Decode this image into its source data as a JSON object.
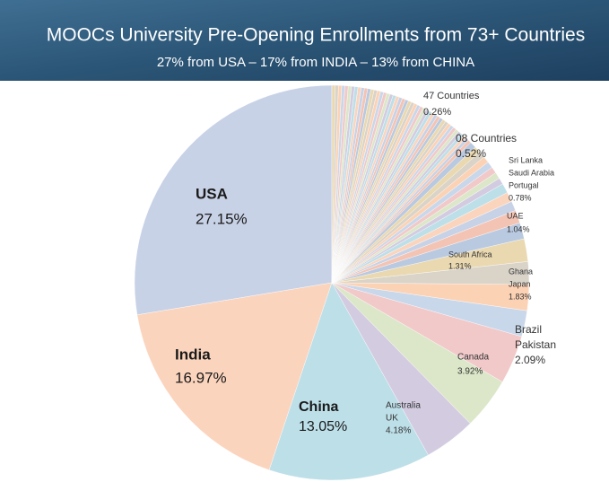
{
  "chart_data": {
    "type": "pie",
    "title": "MOOCs University Pre-Opening Enrollments from 73+ Countries",
    "subtitle": "27% from USA – 17% from INDIA – 13% from CHINA",
    "colors": [
      "#c8d2e6",
      "#fbd4bd",
      "#bddfe8",
      "#d3cce1",
      "#dbe7c8",
      "#f1c9c9",
      "#c9d7ea",
      "#fcd2b5",
      "#d9d3c8",
      "#e9d8b0",
      "#b9c9e0",
      "#f3c4b4"
    ],
    "slices": [
      {
        "names": [
          "USA"
        ],
        "value": 27.15,
        "value_label": "27.15%"
      },
      {
        "names": [
          "India"
        ],
        "value": 16.97,
        "value_label": "16.97%"
      },
      {
        "names": [
          "China"
        ],
        "value": 13.05,
        "value_label": "13.05%"
      },
      {
        "names": [
          "Australia",
          "UK"
        ],
        "value": 4.18,
        "value_label": "4.18%"
      },
      {
        "names": [
          "Canada"
        ],
        "value": 3.92,
        "value_label": "3.92%"
      },
      {
        "names": [
          "Brazil",
          "Pakistan"
        ],
        "value": 2.09,
        "value_label": "2.09%"
      },
      {
        "names": [
          "Ghana",
          "Japan"
        ],
        "value": 1.83,
        "value_label": "1.83%"
      },
      {
        "names": [
          "South Africa"
        ],
        "value": 1.31,
        "value_label": "1.31%"
      },
      {
        "names": [
          "UAE"
        ],
        "value": 1.04,
        "value_label": "1.04%"
      },
      {
        "names": [
          "Sri Lanka",
          "Saudi Arabia",
          "Portugal"
        ],
        "value": 0.78,
        "value_label": "0.78%"
      },
      {
        "label": "08 Countries",
        "count": 8,
        "value": 0.52,
        "value_label": "0.52%"
      },
      {
        "label": "47 Countries",
        "count": 47,
        "value": 0.26,
        "value_label": "0.26%"
      }
    ]
  }
}
